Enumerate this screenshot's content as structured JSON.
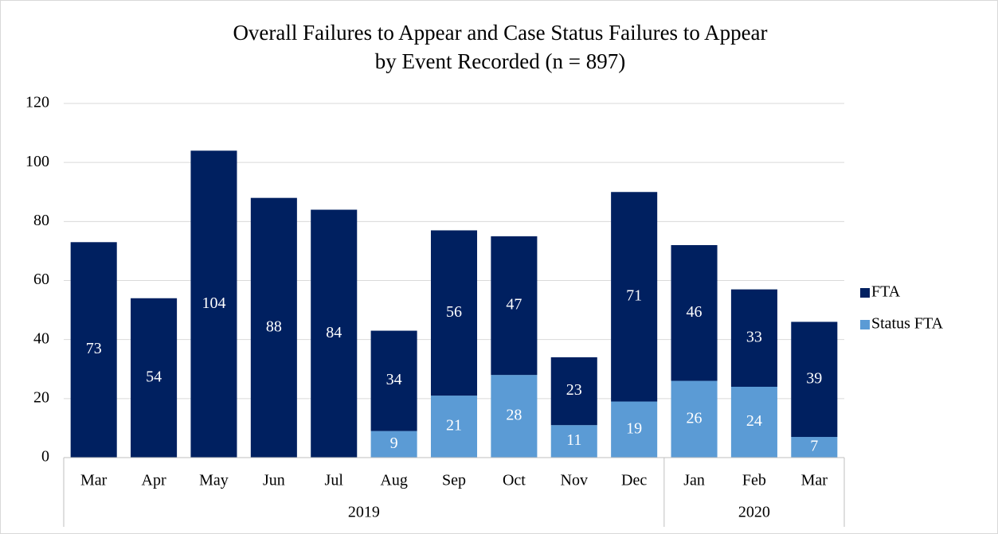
{
  "chart_data": {
    "type": "stacked_bar",
    "title": [
      "Overall Failures to Appear and Case Status Failures to Appear",
      "by Event Recorded (n = 897)"
    ],
    "categories": [
      "Mar",
      "Apr",
      "May",
      "Jun",
      "Jul",
      "Aug",
      "Sep",
      "Oct",
      "Nov",
      "Dec",
      "Jan",
      "Feb",
      "Mar"
    ],
    "x_groups": [
      {
        "label": "2019",
        "count": 10
      },
      {
        "label": "2020",
        "count": 3
      }
    ],
    "series": [
      {
        "name": "FTA",
        "color": "#002060",
        "values": [
          73,
          54,
          104,
          88,
          84,
          34,
          56,
          47,
          23,
          71,
          46,
          33,
          39
        ]
      },
      {
        "name": "Status FTA",
        "color": "#5b9bd5",
        "values": [
          null,
          null,
          null,
          null,
          null,
          9,
          21,
          28,
          11,
          19,
          26,
          24,
          7
        ]
      }
    ],
    "ylim": [
      0,
      120
    ],
    "yticks": [
      0,
      20,
      40,
      60,
      80,
      100,
      120
    ],
    "grid": true,
    "legend": "right"
  }
}
